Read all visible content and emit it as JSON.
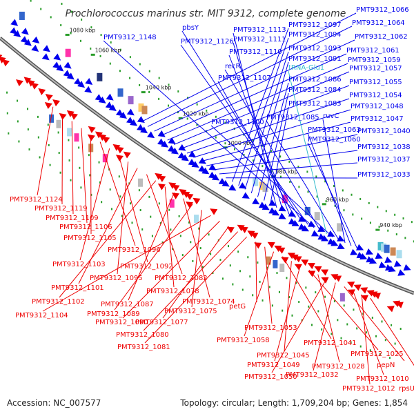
{
  "title": "Prochlorococcus marinus str. MIT 9312, complete genome",
  "footer": {
    "accession": "Accession: NC_007577",
    "summary": "Topology: circular; Length: 1,709,204 bp; Genes: 1,854"
  },
  "colors": {
    "forward": "#0000ee",
    "reverse": "#ee0000",
    "rna": "#33bbcc",
    "backbone": "#888888",
    "tick_dot": "#2a9d2a"
  },
  "ticks": [
    "1080 kbp",
    "1060 kbp",
    "1040 kbp",
    "1020 kbp",
    "1000 kbp",
    "980 kbp",
    "960 kbp",
    "940 kbp"
  ],
  "forward_labels": [
    "PMT9312_1066",
    "PMT9312_1064",
    "PMT9312_1062",
    "PMT9312_1061",
    "PMT9312_1059",
    "PMT9312_1057",
    "PMT9312_1055",
    "PMT9312_1054",
    "PMT9312_1048",
    "PMT9312_1047",
    "PMT9312_1040",
    "PMT9312_1038",
    "PMT9312_1037",
    "PMT9312_1033",
    "PMT9312_1097",
    "PMT9312_1094",
    "PMT9312_1093",
    "PMT9312_1091",
    "PMT9312_1086",
    "PMT9312_1084",
    "PMT9312_1083",
    "PMT9312_1113",
    "PMT9312_1111",
    "PMT9312_1110",
    "PMT9312_1107",
    "pbsY",
    "PMT9312_1126",
    "PMT9312_1148",
    "recR",
    "tRNA-Glu1",
    "PMT9312_1100",
    "PMT9312_1085",
    "ruvC",
    "PMT9312_1063",
    "PMT9312_1060"
  ],
  "reverse_labels": [
    "PMT9312_1124",
    "PMT9312_1119",
    "PMT9312_1109",
    "PMT9312_1106",
    "PMT9312_1105",
    "PMT9312_1096",
    "PMT9312_1103",
    "PMT9312_1092",
    "PMT9312_1095",
    "PMT9312_1101",
    "PMT9312_1082",
    "PMT9312_1102",
    "PMT9312_1078",
    "PMT9312_1087",
    "PMT9312_1074",
    "PMT9312_1089",
    "PMT9312_1075",
    "PMT9312_1104",
    "PMT9312_1090",
    "PMT9312_1077",
    "PMT9312_1080",
    "PMT9312_1081",
    "petG",
    "PMT9312_1053",
    "PMT9312_1058",
    "PMT9312_1041",
    "PMT9312_1045",
    "PMT9312_1049",
    "PMT9312_1025",
    "PMT9312_1028",
    "PMT9312_1050",
    "PMT9312_1032",
    "pepN",
    "PMT9312_1010",
    "PMT9312_1012",
    "rpsU"
  ]
}
